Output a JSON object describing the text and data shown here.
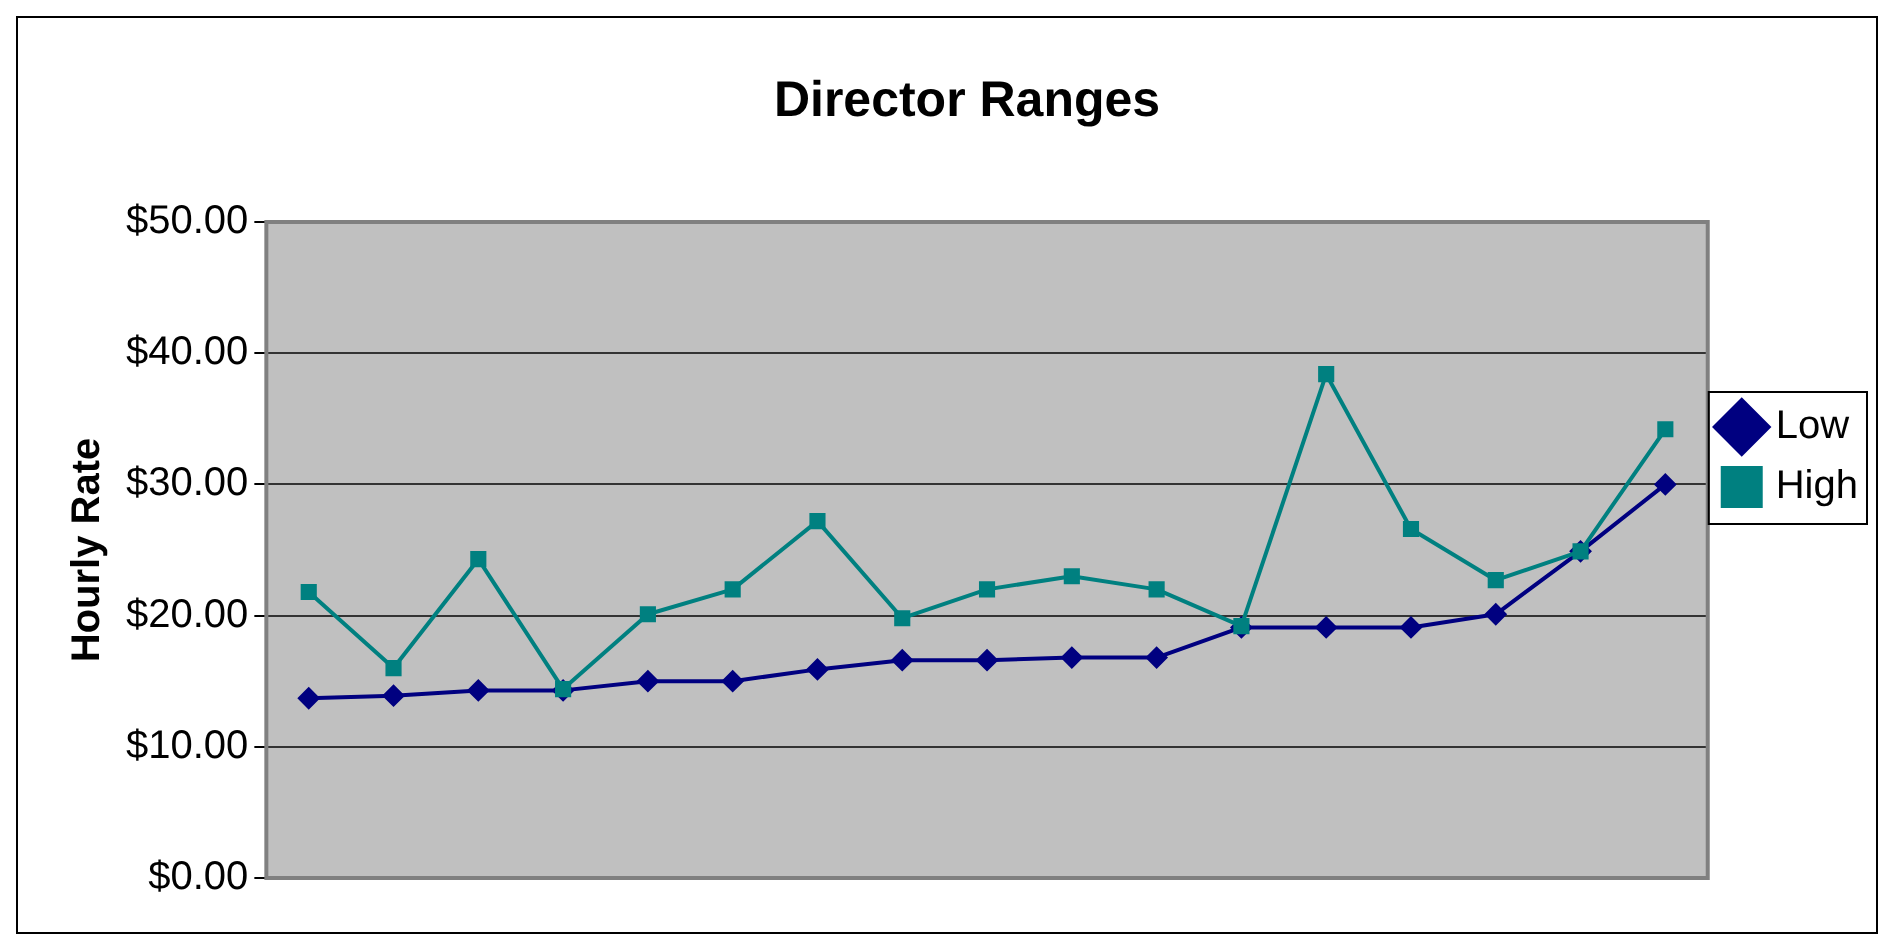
{
  "chart_data": {
    "type": "line",
    "title": "Director Ranges",
    "ylabel": "Hourly Rate",
    "categories": [
      null,
      null,
      null,
      null,
      null,
      null,
      null,
      null,
      null,
      null,
      null,
      null,
      null,
      null,
      null,
      null,
      null
    ],
    "series": [
      {
        "name": "Low",
        "color": "#000080",
        "marker": "diamond",
        "values": [
          13.7,
          13.9,
          14.3,
          14.3,
          15.0,
          15.0,
          15.9,
          16.6,
          16.6,
          16.8,
          16.8,
          19.1,
          19.1,
          19.1,
          20.1,
          24.9,
          30.0
        ]
      },
      {
        "name": "High",
        "color": "#008080",
        "marker": "square",
        "values": [
          21.8,
          16.0,
          24.3,
          14.4,
          20.1,
          22.0,
          27.2,
          19.8,
          22.0,
          23.0,
          22.0,
          19.2,
          38.4,
          26.6,
          22.7,
          24.9,
          34.2
        ]
      }
    ],
    "ylim": [
      0,
      50
    ],
    "yticks": [
      {
        "value": 0,
        "label": "$0.00"
      },
      {
        "value": 10,
        "label": "$10.00"
      },
      {
        "value": 20,
        "label": "$20.00"
      },
      {
        "value": 30,
        "label": "$30.00"
      },
      {
        "value": 40,
        "label": "$40.00"
      },
      {
        "value": 50,
        "label": "$50.00"
      }
    ],
    "grid": "y",
    "legend": "right",
    "line_style": "solid"
  }
}
